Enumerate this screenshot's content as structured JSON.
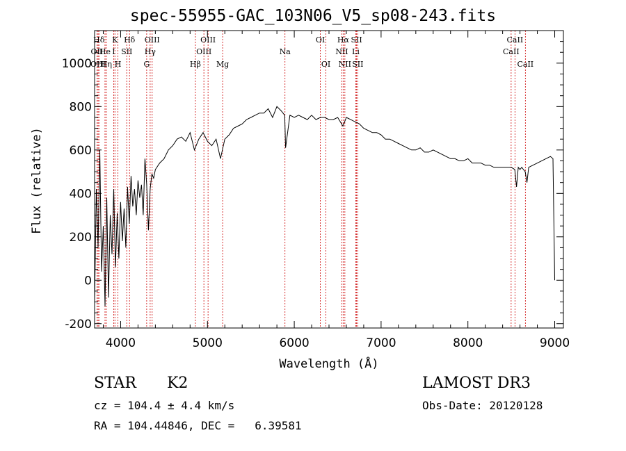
{
  "chart_data": {
    "type": "line",
    "title": "spec-55955-GAC_103N06_V5_sp08-243.fits",
    "xlabel": "Wavelength (Å)",
    "ylabel": "Flux (relative)",
    "xlim": [
      3700,
      9100
    ],
    "ylim": [
      -220,
      1150
    ],
    "xticks": [
      4000,
      5000,
      6000,
      7000,
      8000,
      9000
    ],
    "yticks": [
      -200,
      0,
      200,
      400,
      600,
      800,
      1000
    ],
    "grid": false,
    "series": [
      {
        "name": "spectrum",
        "x": [
          3700,
          3720,
          3740,
          3760,
          3780,
          3800,
          3820,
          3840,
          3860,
          3880,
          3900,
          3920,
          3940,
          3960,
          3980,
          4000,
          4020,
          4040,
          4060,
          4080,
          4100,
          4120,
          4140,
          4160,
          4180,
          4200,
          4220,
          4240,
          4260,
          4280,
          4300,
          4320,
          4340,
          4360,
          4380,
          4400,
          4450,
          4500,
          4550,
          4600,
          4650,
          4700,
          4750,
          4800,
          4850,
          4900,
          4950,
          5000,
          5050,
          5100,
          5150,
          5200,
          5250,
          5300,
          5350,
          5400,
          5450,
          5500,
          5550,
          5600,
          5650,
          5700,
          5750,
          5800,
          5850,
          5890,
          5900,
          5950,
          6000,
          6050,
          6100,
          6150,
          6200,
          6250,
          6300,
          6350,
          6400,
          6450,
          6500,
          6560,
          6600,
          6650,
          6700,
          6750,
          6800,
          6850,
          6900,
          6950,
          7000,
          7050,
          7100,
          7150,
          7200,
          7250,
          7300,
          7350,
          7400,
          7450,
          7500,
          7550,
          7600,
          7650,
          7700,
          7750,
          7800,
          7850,
          7900,
          7950,
          8000,
          8050,
          8100,
          8150,
          8200,
          8250,
          8300,
          8350,
          8400,
          8450,
          8500,
          8540,
          8560,
          8580,
          8600,
          8620,
          8640,
          8660,
          8680,
          8700,
          8750,
          8800,
          8850,
          8900,
          8950,
          8980,
          9000
        ],
        "y": [
          -100,
          420,
          150,
          600,
          40,
          250,
          -120,
          380,
          -80,
          300,
          120,
          420,
          60,
          310,
          100,
          360,
          180,
          330,
          150,
          430,
          260,
          480,
          340,
          420,
          300,
          460,
          380,
          440,
          300,
          560,
          440,
          230,
          420,
          490,
          470,
          510,
          540,
          560,
          600,
          620,
          650,
          660,
          640,
          680,
          600,
          650,
          680,
          640,
          620,
          650,
          560,
          650,
          670,
          700,
          710,
          720,
          740,
          750,
          760,
          770,
          770,
          790,
          750,
          800,
          780,
          760,
          610,
          760,
          750,
          760,
          750,
          740,
          760,
          740,
          750,
          750,
          740,
          740,
          750,
          710,
          750,
          740,
          730,
          720,
          700,
          690,
          680,
          680,
          670,
          650,
          650,
          640,
          630,
          620,
          610,
          600,
          600,
          610,
          590,
          590,
          600,
          590,
          580,
          570,
          560,
          560,
          550,
          550,
          560,
          540,
          540,
          540,
          530,
          530,
          520,
          520,
          520,
          520,
          520,
          510,
          430,
          520,
          510,
          520,
          510,
          500,
          450,
          520,
          530,
          540,
          550,
          560,
          570,
          560,
          0
        ]
      }
    ],
    "lines": [
      {
        "label": "Hδ",
        "x": 3750,
        "row": 1
      },
      {
        "label": "OII",
        "x": 3727,
        "row": 2
      },
      {
        "label": "OIII",
        "x": 3740,
        "row": 3
      },
      {
        "label": "He",
        "x": 3820,
        "row": 2
      },
      {
        "label": "Hη",
        "x": 3835,
        "row": 3
      },
      {
        "label": "K",
        "x": 3934,
        "row": 1
      },
      {
        "label": "I",
        "x": 3920,
        "row": 2
      },
      {
        "label": "SII",
        "x": 4070,
        "row": 2
      },
      {
        "label": "H",
        "x": 3969,
        "row": 3
      },
      {
        "label": "Hδ",
        "x": 4102,
        "row": 1
      },
      {
        "label": "OIII",
        "x": 4363,
        "row": 1
      },
      {
        "label": "Hγ",
        "x": 4340,
        "row": 2
      },
      {
        "label": "G",
        "x": 4300,
        "row": 3
      },
      {
        "label": "Hβ",
        "x": 4861,
        "row": 3
      },
      {
        "label": "OIII",
        "x": 5007,
        "row": 1
      },
      {
        "label": "OIII",
        "x": 4959,
        "row": 2
      },
      {
        "label": "Mg",
        "x": 5175,
        "row": 3
      },
      {
        "label": "Na",
        "x": 5893,
        "row": 2
      },
      {
        "label": "OI",
        "x": 6300,
        "row": 1
      },
      {
        "label": "OI",
        "x": 6364,
        "row": 3
      },
      {
        "label": "Hα",
        "x": 6563,
        "row": 1
      },
      {
        "label": "SII",
        "x": 6717,
        "row": 1
      },
      {
        "label": "NII",
        "x": 6548,
        "row": 2
      },
      {
        "label": "Li",
        "x": 6708,
        "row": 2
      },
      {
        "label": "NII",
        "x": 6583,
        "row": 3
      },
      {
        "label": "SII",
        "x": 6731,
        "row": 3
      },
      {
        "label": "CaII",
        "x": 8542,
        "row": 1
      },
      {
        "label": "CaII",
        "x": 8498,
        "row": 2
      },
      {
        "label": "CaII",
        "x": 8662,
        "row": 3
      }
    ],
    "line_color": "#cc0000"
  },
  "info": {
    "object_class": "STAR",
    "subclass": "K2",
    "survey": "LAMOST DR3",
    "cz": "cz = 104.4 ± 4.4 km/s",
    "obs_date": "Obs-Date: 20120128",
    "radec": "RA = 104.44846, DEC =   6.39581"
  }
}
